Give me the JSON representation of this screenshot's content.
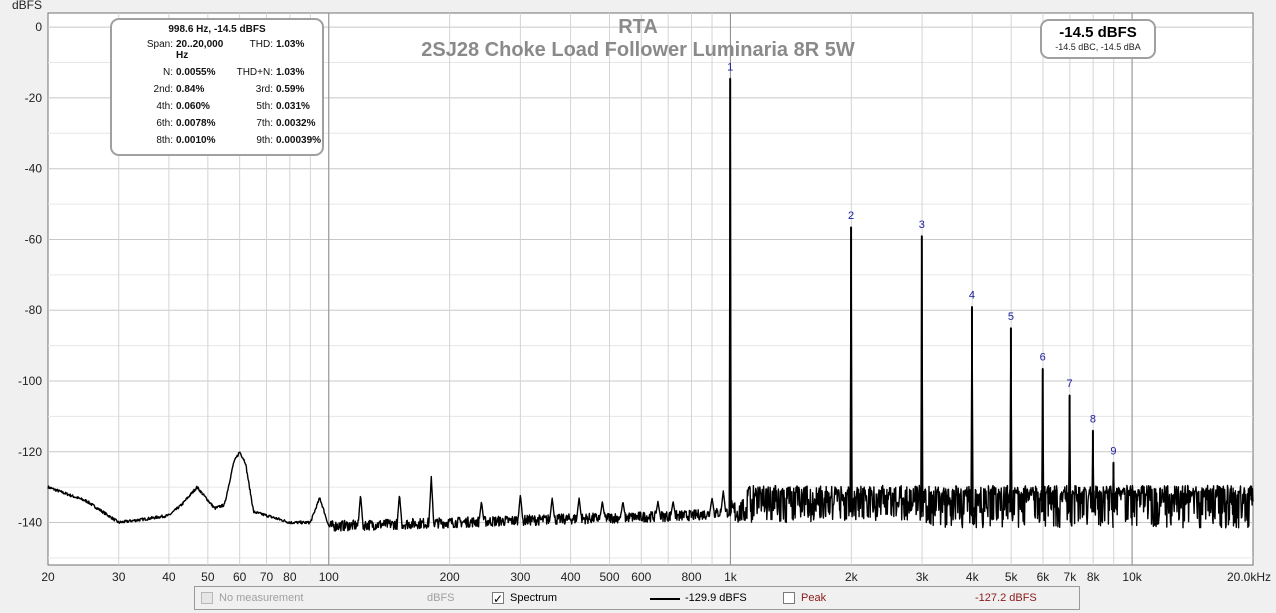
{
  "chart_data": {
    "type": "line",
    "title": "RTA",
    "subtitle": "2SJ28 Choke Load Follower Luminaria 8R 5W",
    "ylabel": "dBFS",
    "xscale": "log",
    "xlim": [
      20,
      20000
    ],
    "ylim": [
      -152,
      4
    ],
    "grid": true,
    "y_ticks": [
      0,
      -20,
      -40,
      -60,
      -80,
      -100,
      -120,
      -140
    ],
    "y_tick_labels": [
      "0",
      "-20",
      "-40",
      "-60",
      "-80",
      "-100",
      "-120",
      "-140"
    ],
    "x_ticks": [
      20,
      30,
      40,
      50,
      60,
      70,
      80,
      100,
      200,
      300,
      400,
      500,
      600,
      800,
      1000,
      2000,
      3000,
      4000,
      5000,
      6000,
      7000,
      8000,
      10000,
      20000
    ],
    "x_tick_labels": [
      "20",
      "30",
      "40",
      "50",
      "60",
      "70",
      "80",
      "100",
      "200",
      "300",
      "400",
      "500",
      "600",
      "800",
      "1k",
      "2k",
      "3k",
      "4k",
      "5k",
      "6k",
      "7k",
      "8k",
      "10k",
      "20.0kHz"
    ],
    "noise_floor": [
      [
        20,
        -130
      ],
      [
        25,
        -134
      ],
      [
        30,
        -140
      ],
      [
        35,
        -139
      ],
      [
        40,
        -138
      ],
      [
        43,
        -135
      ],
      [
        47,
        -130
      ],
      [
        52,
        -136
      ],
      [
        55,
        -135
      ],
      [
        58,
        -123
      ],
      [
        60,
        -120
      ],
      [
        62,
        -123
      ],
      [
        65,
        -137
      ],
      [
        70,
        -138
      ],
      [
        80,
        -140
      ],
      [
        90,
        -140
      ],
      [
        95,
        -133
      ],
      [
        100,
        -141
      ],
      [
        200,
        -140
      ],
      [
        400,
        -139
      ],
      [
        800,
        -138
      ],
      [
        1000,
        -137
      ],
      [
        2000,
        -136
      ],
      [
        5000,
        -136
      ],
      [
        20000,
        -136
      ]
    ],
    "harmonics": [
      {
        "label": "1",
        "x": 998.6,
        "y": -14.5
      },
      {
        "label": "2",
        "x": 1997,
        "y": -56.5
      },
      {
        "label": "3",
        "x": 2996,
        "y": -59
      },
      {
        "label": "4",
        "x": 3994,
        "y": -79
      },
      {
        "label": "5",
        "x": 4993,
        "y": -85
      },
      {
        "label": "6",
        "x": 5992,
        "y": -96.5
      },
      {
        "label": "7",
        "x": 6990,
        "y": -104
      },
      {
        "label": "8",
        "x": 7989,
        "y": -114
      },
      {
        "label": "9",
        "x": 8987,
        "y": -123
      }
    ],
    "spurs": [
      [
        120,
        -132
      ],
      [
        150,
        -132
      ],
      [
        180,
        -127
      ],
      [
        240,
        -134
      ],
      [
        300,
        -132
      ],
      [
        360,
        -133
      ],
      [
        420,
        -133
      ],
      [
        480,
        -134
      ],
      [
        540,
        -134
      ],
      [
        660,
        -134
      ],
      [
        720,
        -134
      ],
      [
        900,
        -133
      ],
      [
        960,
        -131
      ]
    ]
  },
  "stats": {
    "header": "998.6 Hz, -14.5 dBFS",
    "rows": [
      {
        "k1": "Span:",
        "v1": "20..20,000 Hz",
        "k2": "THD:",
        "v2": "1.03%"
      },
      {
        "k1": "N:",
        "v1": "0.0055%",
        "k2": "THD+N:",
        "v2": "1.03%"
      },
      {
        "k1": "2nd:",
        "v1": "0.84%",
        "k2": "3rd:",
        "v2": "0.59%"
      },
      {
        "k1": "4th:",
        "v1": "0.060%",
        "k2": "5th:",
        "v2": "0.031%"
      },
      {
        "k1": "6th:",
        "v1": "0.0078%",
        "k2": "7th:",
        "v2": "0.0032%"
      },
      {
        "k1": "8th:",
        "v1": "0.0010%",
        "k2": "9th:",
        "v2": "0.00039%"
      }
    ]
  },
  "level": {
    "main": "-14.5 dBFS",
    "sub": "-14.5 dBC, -14.5 dBA"
  },
  "legend": {
    "no_measurement": {
      "label": "No measurement",
      "unit": "dBFS",
      "checked": false,
      "enabled": false
    },
    "spectrum": {
      "label": "Spectrum",
      "value": "-129.9 dBFS",
      "checked": true,
      "check_glyph": "✓",
      "color": "#000000"
    },
    "peak": {
      "label": "Peak",
      "value": "-127.2 dBFS",
      "checked": false,
      "color": "#8b1a1a"
    }
  }
}
